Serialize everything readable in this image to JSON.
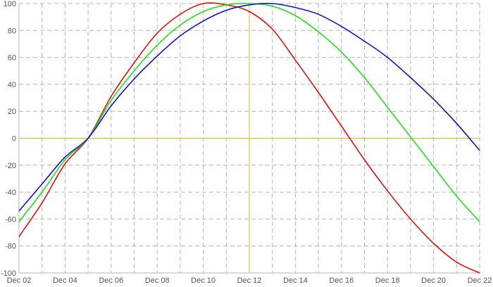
{
  "chart_data": {
    "type": "line",
    "title": "",
    "xlabel": "",
    "ylabel": "",
    "x_domain": [
      "2023-12-02",
      "2023-12-22"
    ],
    "y_domain": [
      -100,
      100
    ],
    "x_ticks": [
      "Dec 02",
      "Dec 04",
      "Dec 06",
      "Dec 08",
      "Dec 10",
      "Dec 12",
      "Dec 14",
      "Dec 16",
      "Dec 18",
      "Dec 20",
      "Dec 22"
    ],
    "y_ticks": [
      "100",
      "80",
      "60",
      "40",
      "20",
      "0",
      "-20",
      "-40",
      "-60",
      "-80",
      "-100"
    ],
    "grid": true,
    "crosshair": {
      "x": "2023-12-12",
      "y": 0,
      "color": "#f0b020"
    },
    "series": [
      {
        "color": "#e01010",
        "x": [
          "2023-12-02",
          "2023-12-03",
          "2023-12-04",
          "2023-12-05",
          "2023-12-06",
          "2023-12-07",
          "2023-12-08",
          "2023-12-09",
          "2023-12-10",
          "2023-12-11",
          "2023-12-12",
          "2023-12-13",
          "2023-12-14",
          "2023-12-15",
          "2023-12-16",
          "2023-12-17",
          "2023-12-18",
          "2023-12-19",
          "2023-12-20",
          "2023-12-21",
          "2023-12-22"
        ],
        "values": [
          -73,
          -48,
          -19,
          0,
          31,
          56,
          78,
          92,
          100,
          99,
          94,
          81,
          58,
          34,
          9,
          -16,
          -39,
          -60,
          -78,
          -92,
          -100
        ]
      },
      {
        "color": "#20e020",
        "x": [
          "2023-12-02",
          "2023-12-03",
          "2023-12-04",
          "2023-12-05",
          "2023-12-06",
          "2023-12-07",
          "2023-12-08",
          "2023-12-09",
          "2023-12-10",
          "2023-12-11",
          "2023-12-12",
          "2023-12-13",
          "2023-12-14",
          "2023-12-15",
          "2023-12-16",
          "2023-12-17",
          "2023-12-18",
          "2023-12-19",
          "2023-12-20",
          "2023-12-21",
          "2023-12-22"
        ],
        "values": [
          -62,
          -40,
          -16,
          0,
          28,
          50,
          69,
          84,
          94,
          99,
          100,
          98,
          91,
          79,
          64,
          45,
          23,
          1,
          -21,
          -43,
          -62
        ]
      },
      {
        "color": "#1010d0",
        "x": [
          "2023-12-02",
          "2023-12-03",
          "2023-12-04",
          "2023-12-05",
          "2023-12-06",
          "2023-12-07",
          "2023-12-08",
          "2023-12-09",
          "2023-12-10",
          "2023-12-11",
          "2023-12-12",
          "2023-12-13",
          "2023-12-14",
          "2023-12-15",
          "2023-12-16",
          "2023-12-17",
          "2023-12-18",
          "2023-12-19",
          "2023-12-20",
          "2023-12-21",
          "2023-12-22"
        ],
        "values": [
          -54,
          -34,
          -14,
          0,
          24,
          44,
          61,
          76,
          87,
          95,
          99,
          100,
          97,
          92,
          83,
          72,
          60,
          45,
          29,
          11,
          -9
        ]
      }
    ]
  }
}
